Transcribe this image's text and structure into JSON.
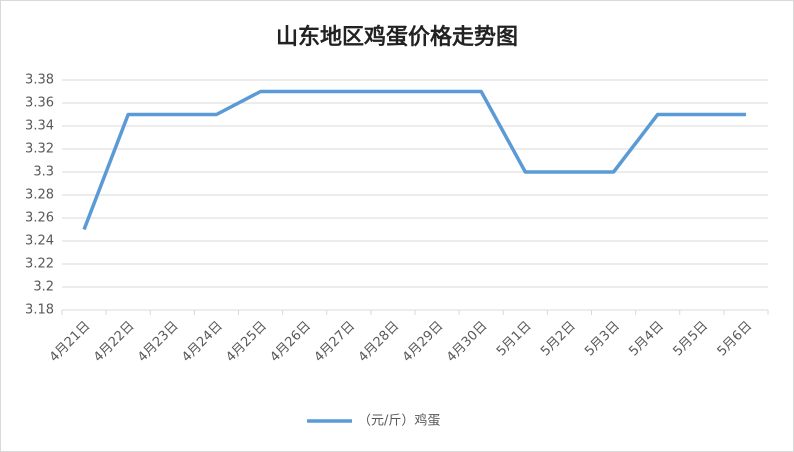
{
  "chart_data": {
    "type": "line",
    "title": "山东地区鸡蛋价格走势图",
    "categories": [
      "4月21日",
      "4月22日",
      "4月23日",
      "4月24日",
      "4月25日",
      "4月26日",
      "4月27日",
      "4月28日",
      "4月29日",
      "4月30日",
      "5月1日",
      "5月2日",
      "5月3日",
      "5月4日",
      "5月5日",
      "5月6日"
    ],
    "series": [
      {
        "name": "（元/斤）鸡蛋",
        "color": "#5b9bd5",
        "values": [
          3.25,
          3.35,
          3.35,
          3.35,
          3.37,
          3.37,
          3.37,
          3.37,
          3.37,
          3.37,
          3.3,
          3.3,
          3.3,
          3.35,
          3.35,
          3.35
        ]
      }
    ],
    "ylim": [
      3.18,
      3.38
    ],
    "yticks": [
      3.18,
      3.2,
      3.22,
      3.24,
      3.26,
      3.28,
      3.3,
      3.32,
      3.34,
      3.36,
      3.38
    ],
    "grid": true,
    "legend": "bottom"
  }
}
